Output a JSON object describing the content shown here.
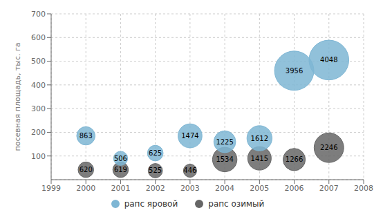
{
  "chart_data": {
    "type": "scatter",
    "ylabel": "посевная площадь, тыс. га",
    "xlim": [
      1999,
      2008
    ],
    "ylim": [
      0,
      700
    ],
    "xticks": [
      1999,
      2000,
      2001,
      2002,
      2003,
      2004,
      2005,
      2006,
      2007,
      2008
    ],
    "yticks": [
      100,
      200,
      300,
      400,
      500,
      600,
      700
    ],
    "grid": true,
    "legend": "bottom",
    "data_labels": true,
    "series": [
      {
        "name": "рапс яровой",
        "color": "#7eb6d4",
        "x": [
          2000,
          2001,
          2002,
          2003,
          2004,
          2005,
          2006,
          2007
        ],
        "values": [
          185,
          90,
          112,
          185,
          160,
          175,
          460,
          505
        ],
        "sizes": [
          863,
          506,
          625,
          1474,
          1225,
          1612,
          3956,
          4048
        ]
      },
      {
        "name": "рапс озимый",
        "color": "#666666",
        "x": [
          2000,
          2001,
          2002,
          2003,
          2004,
          2005,
          2006,
          2007
        ],
        "values": [
          42,
          42,
          38,
          38,
          85,
          90,
          85,
          135
        ],
        "sizes": [
          620,
          619,
          525,
          446,
          1534,
          1415,
          1266,
          2246
        ]
      }
    ]
  }
}
